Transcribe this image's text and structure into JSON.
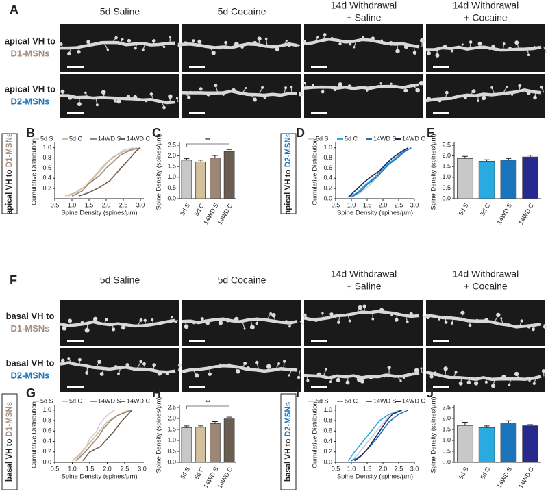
{
  "image_panels": [
    {
      "panel": "A",
      "columns": [
        [
          "5d Saline"
        ],
        [
          "5d Cocaine"
        ],
        [
          "14d Withdrawal",
          "+ Saline"
        ],
        [
          "14d Withdrawal",
          "+ Cocaine"
        ]
      ],
      "rows": [
        {
          "prefix": "apical VH to",
          "target": "D1-MSNs",
          "color": "#a38d7e"
        },
        {
          "prefix": "apical VH to",
          "target": "D2-MSNs",
          "color": "#1b75bc"
        }
      ]
    },
    {
      "panel": "F",
      "columns": [
        [
          "5d Saline"
        ],
        [
          "5d Cocaine"
        ],
        [
          "14d Withdrawal",
          "+ Saline"
        ],
        [
          "14d Withdrawal",
          "+ Cocaine"
        ]
      ],
      "rows": [
        {
          "prefix": "basal VH to",
          "target": "D1-MSNs",
          "color": "#a38d7e"
        },
        {
          "prefix": "basal VH to",
          "target": "D2-MSNs",
          "color": "#1b75bc"
        }
      ]
    }
  ],
  "chart_data": [
    {
      "type": "line",
      "panel": "B",
      "side_label": "apical VH to",
      "side_target": "D1-MSNs",
      "side_color": "#a38d7e",
      "x_label": "Spine Density (spines/µm)",
      "y_label": "Cumulative Distribution",
      "xlim": [
        0.5,
        3.1
      ],
      "xticks": [
        0.5,
        {
          "value": 1,
          "label": "1.0"
        },
        1.5,
        {
          "value": 2,
          "label": "2.0"
        },
        2.5,
        {
          "value": 3,
          "label": "3.0"
        }
      ],
      "ylim": [
        0,
        1.05
      ],
      "yticks": [
        0.2,
        0.4,
        0.6,
        0.8,
        {
          "value": 1,
          "label": "1.0"
        }
      ],
      "series": [
        {
          "name": "5d S",
          "color": "#cfcfcf",
          "x": [
            0.9,
            1.2,
            1.5,
            1.7,
            1.9,
            2.1,
            2.3,
            2.5,
            2.8
          ],
          "values": [
            0.05,
            0.15,
            0.3,
            0.45,
            0.6,
            0.75,
            0.85,
            0.95,
            1.0
          ]
        },
        {
          "name": "5d C",
          "color": "#d3c09c",
          "x": [
            0.8,
            1.1,
            1.4,
            1.6,
            1.8,
            2.0,
            2.2,
            2.5,
            2.9
          ],
          "values": [
            0.05,
            0.12,
            0.25,
            0.4,
            0.55,
            0.7,
            0.82,
            0.92,
            1.0
          ]
        },
        {
          "name": "14WD S",
          "color": "#9c8676",
          "x": [
            1.0,
            1.3,
            1.5,
            1.8,
            2.0,
            2.2,
            2.4,
            2.7,
            3.0
          ],
          "values": [
            0.05,
            0.15,
            0.3,
            0.45,
            0.6,
            0.72,
            0.85,
            0.95,
            1.0
          ]
        },
        {
          "name": "14WD C",
          "color": "#6b5d4f",
          "x": [
            1.2,
            1.5,
            1.8,
            2.1,
            2.3,
            2.5,
            2.7,
            2.9,
            3.0
          ],
          "values": [
            0.05,
            0.12,
            0.22,
            0.35,
            0.5,
            0.65,
            0.8,
            0.95,
            1.0
          ]
        }
      ]
    },
    {
      "type": "bar",
      "panel": "C",
      "y_label": "Spine Density (spines/µm)",
      "ylim": [
        0,
        2.5
      ],
      "yticks": [
        {
          "value": 0,
          "label": "0.0"
        },
        0.5,
        {
          "value": 1,
          "label": "1.0"
        },
        1.5,
        {
          "value": 2,
          "label": "2.0"
        },
        2.5
      ],
      "categories": [
        "5d S",
        "5d C",
        "14WD S",
        "14WD C"
      ],
      "colors": [
        "#c8c8c8",
        "#d3c09c",
        "#9c8676",
        "#6b5d4f"
      ],
      "values": [
        1.8,
        1.72,
        1.9,
        2.2
      ],
      "errors": [
        0.07,
        0.08,
        0.12,
        0.1
      ],
      "significance": {
        "pair": [
          "5d S",
          "14WD C"
        ],
        "label": "**"
      }
    },
    {
      "type": "line",
      "panel": "D",
      "side_label": "apical VH to",
      "side_target": "D2-MSNs",
      "side_color": "#1b75bc",
      "x_label": "Spine Density (spines/µm)",
      "y_label": "Cumulative Distribution",
      "xlim": [
        0.5,
        3.0
      ],
      "xticks": [
        0.5,
        {
          "value": 1,
          "label": "1.0"
        },
        1.5,
        {
          "value": 2,
          "label": "2.0"
        },
        2.5,
        {
          "value": 3,
          "label": "3.0"
        }
      ],
      "ylim": [
        0,
        1.05
      ],
      "yticks": [
        {
          "value": 0,
          "label": "0.0"
        },
        0.2,
        0.4,
        0.6,
        0.8,
        {
          "value": 1,
          "label": "1.0"
        }
      ],
      "series": [
        {
          "name": "5d S",
          "color": "#cfcfcf",
          "x": [
            1.0,
            1.3,
            1.6,
            1.8,
            2.0,
            2.2,
            2.4,
            2.6,
            2.8
          ],
          "values": [
            0.03,
            0.12,
            0.28,
            0.42,
            0.55,
            0.68,
            0.8,
            0.92,
            1.0
          ]
        },
        {
          "name": "5d C",
          "color": "#29abe2",
          "x": [
            0.9,
            1.2,
            1.4,
            1.7,
            1.9,
            2.1,
            2.4,
            2.6,
            2.8
          ],
          "values": [
            0.03,
            0.12,
            0.25,
            0.4,
            0.52,
            0.65,
            0.8,
            0.9,
            1.0
          ]
        },
        {
          "name": "14WD S",
          "color": "#1b75bc",
          "x": [
            1.0,
            1.3,
            1.5,
            1.8,
            2.0,
            2.2,
            2.5,
            2.7,
            2.9
          ],
          "values": [
            0.03,
            0.15,
            0.28,
            0.42,
            0.55,
            0.68,
            0.82,
            0.93,
            1.0
          ]
        },
        {
          "name": "14WD C",
          "color": "#262262",
          "x": [
            0.9,
            1.2,
            1.4,
            1.6,
            1.9,
            2.1,
            2.3,
            2.6,
            2.8
          ],
          "values": [
            0.03,
            0.2,
            0.32,
            0.42,
            0.55,
            0.68,
            0.8,
            0.93,
            1.0
          ]
        }
      ]
    },
    {
      "type": "bar",
      "panel": "E",
      "y_label": "Spine Density (spines/µm)",
      "ylim": [
        0,
        2.5
      ],
      "yticks": [
        {
          "value": 0,
          "label": "0.0"
        },
        0.5,
        {
          "value": 1,
          "label": "1.0"
        },
        1.5,
        {
          "value": 2,
          "label": "2.0"
        },
        2.5
      ],
      "categories": [
        "5d S",
        "5d C",
        "14WD S",
        "14WD C"
      ],
      "colors": [
        "#c8c8c8",
        "#29abe2",
        "#1b75bc",
        "#262a8f"
      ],
      "values": [
        1.88,
        1.75,
        1.8,
        1.95
      ],
      "errors": [
        0.1,
        0.07,
        0.08,
        0.08
      ]
    },
    {
      "type": "line",
      "panel": "G",
      "side_label": "basal VH to",
      "side_target": "D1-MSNs",
      "side_color": "#a38d7e",
      "x_label": "Spine Density (spines/µm)",
      "y_label": "Cumulative Distribution",
      "xlim": [
        0.5,
        3.05
      ],
      "xticks": [
        0.5,
        {
          "value": 1,
          "label": "1.0"
        },
        1.5,
        {
          "value": 2,
          "label": "2.0"
        },
        2.5,
        {
          "value": 3,
          "label": "3.0"
        }
      ],
      "ylim": [
        0,
        1.05
      ],
      "yticks": [
        {
          "value": 0,
          "label": "0.0"
        },
        0.2,
        0.4,
        0.6,
        0.8,
        {
          "value": 1,
          "label": "1.0"
        }
      ],
      "series": [
        {
          "name": "5d S",
          "color": "#cfcfcf",
          "x": [
            1.0,
            1.2,
            1.4,
            1.5,
            1.7,
            1.8,
            2.0,
            2.2
          ],
          "values": [
            0.03,
            0.12,
            0.3,
            0.45,
            0.6,
            0.75,
            0.9,
            1.0
          ]
        },
        {
          "name": "5d C",
          "color": "#d3c09c",
          "x": [
            1.0,
            1.2,
            1.4,
            1.6,
            1.8,
            2.0,
            2.3,
            2.6
          ],
          "values": [
            0.03,
            0.15,
            0.3,
            0.45,
            0.62,
            0.78,
            0.9,
            1.0
          ]
        },
        {
          "name": "14WD S",
          "color": "#9c8676",
          "x": [
            1.1,
            1.3,
            1.5,
            1.7,
            1.9,
            2.1,
            2.3,
            2.7
          ],
          "values": [
            0.03,
            0.15,
            0.3,
            0.45,
            0.65,
            0.8,
            0.9,
            1.0
          ]
        },
        {
          "name": "14WD C",
          "color": "#6b5d4f",
          "x": [
            1.3,
            1.5,
            1.8,
            2.0,
            2.2,
            2.4,
            2.6,
            2.7
          ],
          "values": [
            0.03,
            0.2,
            0.3,
            0.45,
            0.6,
            0.78,
            0.92,
            1.0
          ]
        }
      ]
    },
    {
      "type": "bar",
      "panel": "H",
      "y_label": "Spine Density (spines/µm)",
      "ylim": [
        0,
        2.5
      ],
      "yticks": [
        {
          "value": 0,
          "label": "0.0"
        },
        0.5,
        {
          "value": 1,
          "label": "1.0"
        },
        1.5,
        {
          "value": 2,
          "label": "2.0"
        },
        2.5
      ],
      "categories": [
        "5d S",
        "5d C",
        "14WD S",
        "14WD C"
      ],
      "colors": [
        "#c8c8c8",
        "#d3c09c",
        "#9c8676",
        "#6b5d4f"
      ],
      "values": [
        1.58,
        1.6,
        1.77,
        1.98
      ],
      "errors": [
        0.08,
        0.06,
        0.09,
        0.08
      ],
      "significance": {
        "pair": [
          "5d S",
          "14WD C"
        ],
        "label": "**"
      }
    },
    {
      "type": "line",
      "panel": "I",
      "side_label": "basal VH to",
      "side_target": "D2-MSNs",
      "side_color": "#1b75bc",
      "x_label": "Spine Density (spines/µm)",
      "y_label": "Cumulative Distribution",
      "xlim": [
        0.5,
        3.0
      ],
      "xticks": [
        0.5,
        {
          "value": 1,
          "label": "1.0"
        },
        1.5,
        {
          "value": 2,
          "label": "2.0"
        },
        2.5,
        {
          "value": 3,
          "label": "3.0"
        }
      ],
      "ylim": [
        0,
        1.05
      ],
      "yticks": [
        {
          "value": 0,
          "label": "0.0"
        },
        0.2,
        0.4,
        0.6,
        0.8,
        {
          "value": 1,
          "label": "1.0"
        }
      ],
      "series": [
        {
          "name": "5d S",
          "color": "#cfcfcf",
          "x": [
            1.0,
            1.2,
            1.4,
            1.6,
            1.8,
            2.0,
            2.2,
            2.5
          ],
          "values": [
            0.03,
            0.15,
            0.3,
            0.45,
            0.6,
            0.75,
            0.88,
            1.0
          ]
        },
        {
          "name": "5d C",
          "color": "#29abe2",
          "x": [
            0.9,
            1.1,
            1.3,
            1.5,
            1.7,
            1.9,
            2.2,
            2.6
          ],
          "values": [
            0.03,
            0.2,
            0.35,
            0.5,
            0.65,
            0.8,
            0.92,
            1.0
          ]
        },
        {
          "name": "14WD S",
          "color": "#1b75bc",
          "x": [
            1.0,
            1.3,
            1.5,
            1.8,
            2.0,
            2.2,
            2.5,
            2.8
          ],
          "values": [
            0.03,
            0.12,
            0.25,
            0.45,
            0.62,
            0.78,
            0.92,
            1.0
          ]
        },
        {
          "name": "14WD C",
          "color": "#262262",
          "x": [
            1.1,
            1.3,
            1.5,
            1.7,
            1.9,
            2.1,
            2.3,
            2.6
          ],
          "values": [
            0.03,
            0.12,
            0.25,
            0.42,
            0.6,
            0.78,
            0.92,
            1.0
          ]
        }
      ]
    },
    {
      "type": "bar",
      "panel": "J",
      "y_label": "Spine Density (spines/µm)",
      "ylim": [
        0,
        2.5
      ],
      "yticks": [
        {
          "value": 0,
          "label": "0.0"
        },
        0.5,
        {
          "value": 1,
          "label": "1.0"
        },
        1.5,
        {
          "value": 2,
          "label": "2.0"
        },
        2.5
      ],
      "categories": [
        "5d S",
        "5d C",
        "14WD S",
        "14WD C"
      ],
      "colors": [
        "#c8c8c8",
        "#29abe2",
        "#1b75bc",
        "#262a8f"
      ],
      "values": [
        1.68,
        1.58,
        1.8,
        1.67
      ],
      "errors": [
        0.15,
        0.08,
        0.1,
        0.05
      ]
    }
  ]
}
